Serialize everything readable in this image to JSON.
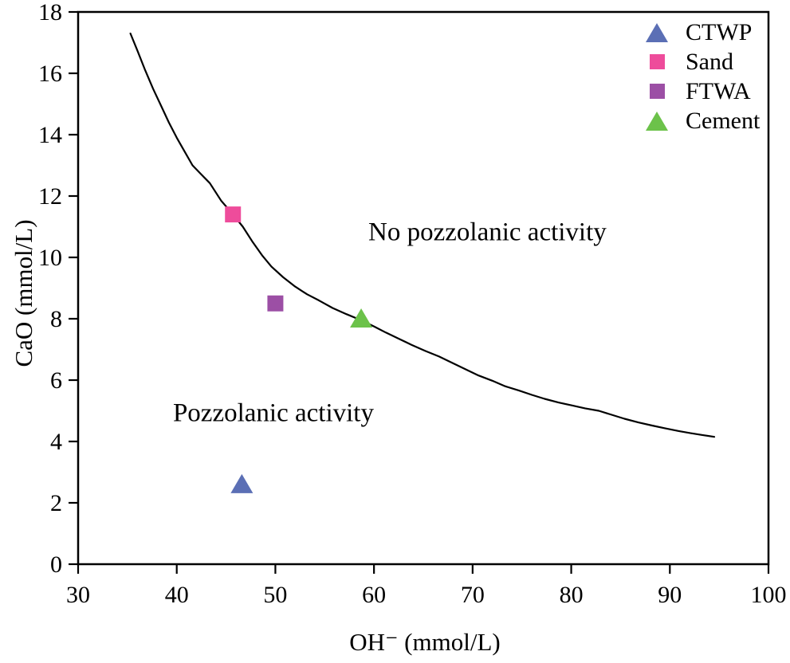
{
  "chart_data": {
    "type": "scatter",
    "title": "",
    "xlabel": "OH⁻ (mmol/L)",
    "ylabel": "CaO (mmol/L)",
    "xlim": [
      30,
      100
    ],
    "ylim": [
      0,
      18
    ],
    "x_ticks": [
      30,
      40,
      50,
      60,
      70,
      80,
      90,
      100
    ],
    "y_ticks": [
      0,
      2,
      4,
      6,
      8,
      10,
      12,
      14,
      16,
      18
    ],
    "grid": false,
    "legend_position": "top-right-inside",
    "frame_color": "#000000",
    "series": [
      {
        "name": "CTWP",
        "marker": "triangle",
        "color": "#5b6fb5",
        "points": [
          [
            46.6,
            2.6
          ]
        ]
      },
      {
        "name": "Sand",
        "marker": "square",
        "color": "#ee4c9b",
        "points": [
          [
            45.7,
            11.4
          ]
        ]
      },
      {
        "name": "FTWA",
        "marker": "square",
        "color": "#9c4fa5",
        "points": [
          [
            50.0,
            8.5
          ]
        ]
      },
      {
        "name": "Cement",
        "marker": "triangle",
        "color": "#6cc24a",
        "points": [
          [
            58.7,
            8.0
          ]
        ]
      }
    ],
    "curve": {
      "name": "lime-solubility-isotherm",
      "color": "#000000",
      "points": [
        [
          35.3,
          17.3
        ],
        [
          36.0,
          16.75
        ],
        [
          36.8,
          16.1
        ],
        [
          37.6,
          15.5
        ],
        [
          38.4,
          14.95
        ],
        [
          39.2,
          14.4
        ],
        [
          40.0,
          13.9
        ],
        [
          40.8,
          13.45
        ],
        [
          41.6,
          13.0
        ],
        [
          42.5,
          12.7
        ],
        [
          43.35,
          12.42
        ],
        [
          44.5,
          11.85
        ],
        [
          45.7,
          11.4
        ],
        [
          46.7,
          11.0
        ],
        [
          47.7,
          10.5
        ],
        [
          48.7,
          10.05
        ],
        [
          49.6,
          9.7
        ],
        [
          50.8,
          9.35
        ],
        [
          52.0,
          9.05
        ],
        [
          53.2,
          8.8
        ],
        [
          54.4,
          8.6
        ],
        [
          55.8,
          8.35
        ],
        [
          57.2,
          8.15
        ],
        [
          58.7,
          7.95
        ],
        [
          60.0,
          7.75
        ],
        [
          61.2,
          7.55
        ],
        [
          62.5,
          7.35
        ],
        [
          63.8,
          7.15
        ],
        [
          65.2,
          6.95
        ],
        [
          66.6,
          6.77
        ],
        [
          68.0,
          6.55
        ],
        [
          69.3,
          6.35
        ],
        [
          70.6,
          6.15
        ],
        [
          72.0,
          5.98
        ],
        [
          73.3,
          5.8
        ],
        [
          74.7,
          5.66
        ],
        [
          76.0,
          5.52
        ],
        [
          77.3,
          5.39
        ],
        [
          78.7,
          5.27
        ],
        [
          80.0,
          5.18
        ],
        [
          81.4,
          5.08
        ],
        [
          82.8,
          5.0
        ],
        [
          84.1,
          4.87
        ],
        [
          85.4,
          4.74
        ],
        [
          86.8,
          4.62
        ],
        [
          88.2,
          4.52
        ],
        [
          89.5,
          4.43
        ],
        [
          90.9,
          4.34
        ],
        [
          92.1,
          4.27
        ],
        [
          93.3,
          4.21
        ],
        [
          94.5,
          4.15
        ]
      ]
    },
    "annotations": [
      {
        "text": "No pozzolanic activity",
        "x": 71.5,
        "y": 10.8
      },
      {
        "text": "Pozzolanic activity",
        "x": 49.8,
        "y": 4.9
      }
    ]
  }
}
